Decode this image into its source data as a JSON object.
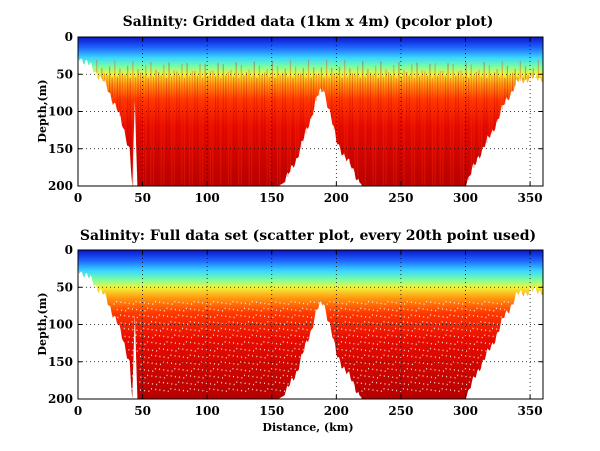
{
  "chart_data": [
    {
      "type": "heatmap",
      "title": "Salinity: Gridded data (1km x 4m) (pcolor plot)",
      "xlabel": "",
      "ylabel": "Depth,(m)",
      "xlim": [
        0,
        360
      ],
      "ylim": [
        200,
        0
      ],
      "y_reversed": true,
      "grid": true,
      "grid_style": "dotted",
      "colormap": "jet",
      "xticks": [
        0,
        50,
        100,
        150,
        200,
        250,
        300,
        350
      ],
      "yticks": [
        0,
        50,
        100,
        150,
        200
      ],
      "cell_size": {
        "distance_km": 1,
        "depth_m": 4
      },
      "profile_depth_m": {
        "distance": [
          0,
          10,
          20,
          30,
          40,
          42,
          44,
          46,
          50,
          60,
          70,
          80,
          90,
          100,
          110,
          120,
          130,
          140,
          150,
          155,
          160,
          170,
          180,
          185,
          190,
          195,
          200,
          210,
          220,
          230,
          240,
          250,
          260,
          270,
          280,
          290,
          300,
          310,
          320,
          330,
          340,
          350,
          360
        ],
        "depth": [
          25,
          40,
          60,
          95,
          150,
          200,
          90,
          200,
          200,
          200,
          200,
          200,
          200,
          200,
          200,
          200,
          200,
          200,
          200,
          200,
          195,
          160,
          110,
          80,
          70,
          100,
          140,
          170,
          200,
          200,
          200,
          200,
          200,
          200,
          200,
          200,
          200,
          160,
          130,
          90,
          60,
          55,
          55
        ]
      },
      "surface_fresh_layer_depth_m": {
        "distance": [
          0,
          50,
          100,
          150,
          190,
          200,
          250,
          300,
          350,
          360
        ],
        "depth": [
          10,
          15,
          18,
          15,
          12,
          18,
          14,
          16,
          10,
          8
        ]
      }
    },
    {
      "type": "scatter",
      "title": "Salinity: Full data set (scatter plot, every 20th point used)",
      "xlabel": "Distance, (km)",
      "ylabel": "Depth,(m)",
      "xlim": [
        0,
        360
      ],
      "ylim": [
        200,
        0
      ],
      "y_reversed": true,
      "grid": true,
      "grid_style": "dotted",
      "colormap": "jet",
      "xticks": [
        0,
        50,
        100,
        150,
        200,
        250,
        300,
        350
      ],
      "yticks": [
        0,
        50,
        100,
        150,
        200
      ],
      "sampling": "every 20th point"
    }
  ]
}
